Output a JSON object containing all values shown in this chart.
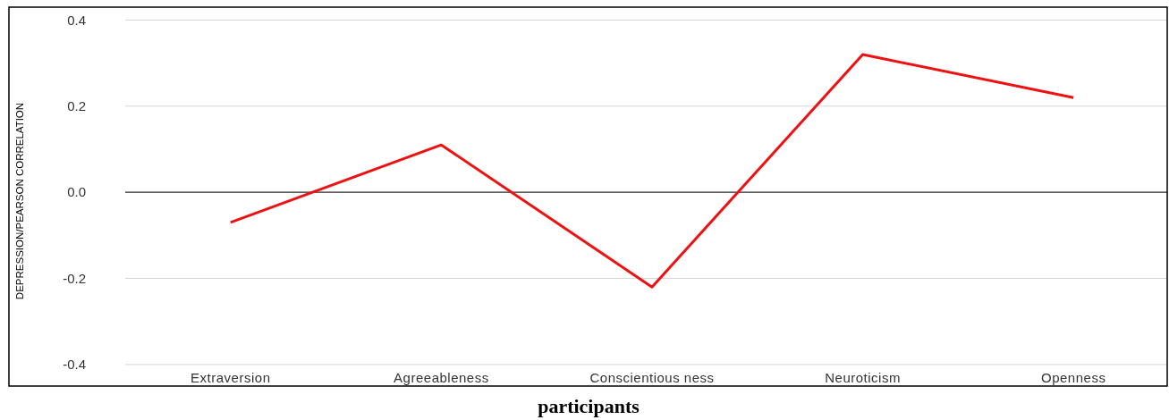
{
  "chart_data": {
    "type": "line",
    "xlabel": "participants",
    "ylabel": "DEPRESSION/PEARSON CORRELATION",
    "categories": [
      "Extraversion",
      "Agreeableness",
      "Conscientious ness",
      "Neuroticism",
      "Openness"
    ],
    "series": [
      {
        "color": "#ee1111",
        "values": [
          -0.07,
          0.11,
          -0.22,
          0.32,
          0.22
        ]
      }
    ],
    "ylim": [
      -0.45,
      0.43
    ],
    "yticks": [
      {
        "value": -0.4,
        "label": "-0.4"
      },
      {
        "value": -0.2,
        "label": "-0.2"
      },
      {
        "value": 0,
        "label": "0.0"
      },
      {
        "value": 0.2,
        "label": "0.2"
      },
      {
        "value": 0.4,
        "label": "0.4"
      }
    ],
    "grid": "y",
    "marker": "none",
    "line_style": "solid",
    "ref_lines": [
      {
        "axis": "y",
        "value": 0,
        "color": "#333333"
      }
    ]
  }
}
